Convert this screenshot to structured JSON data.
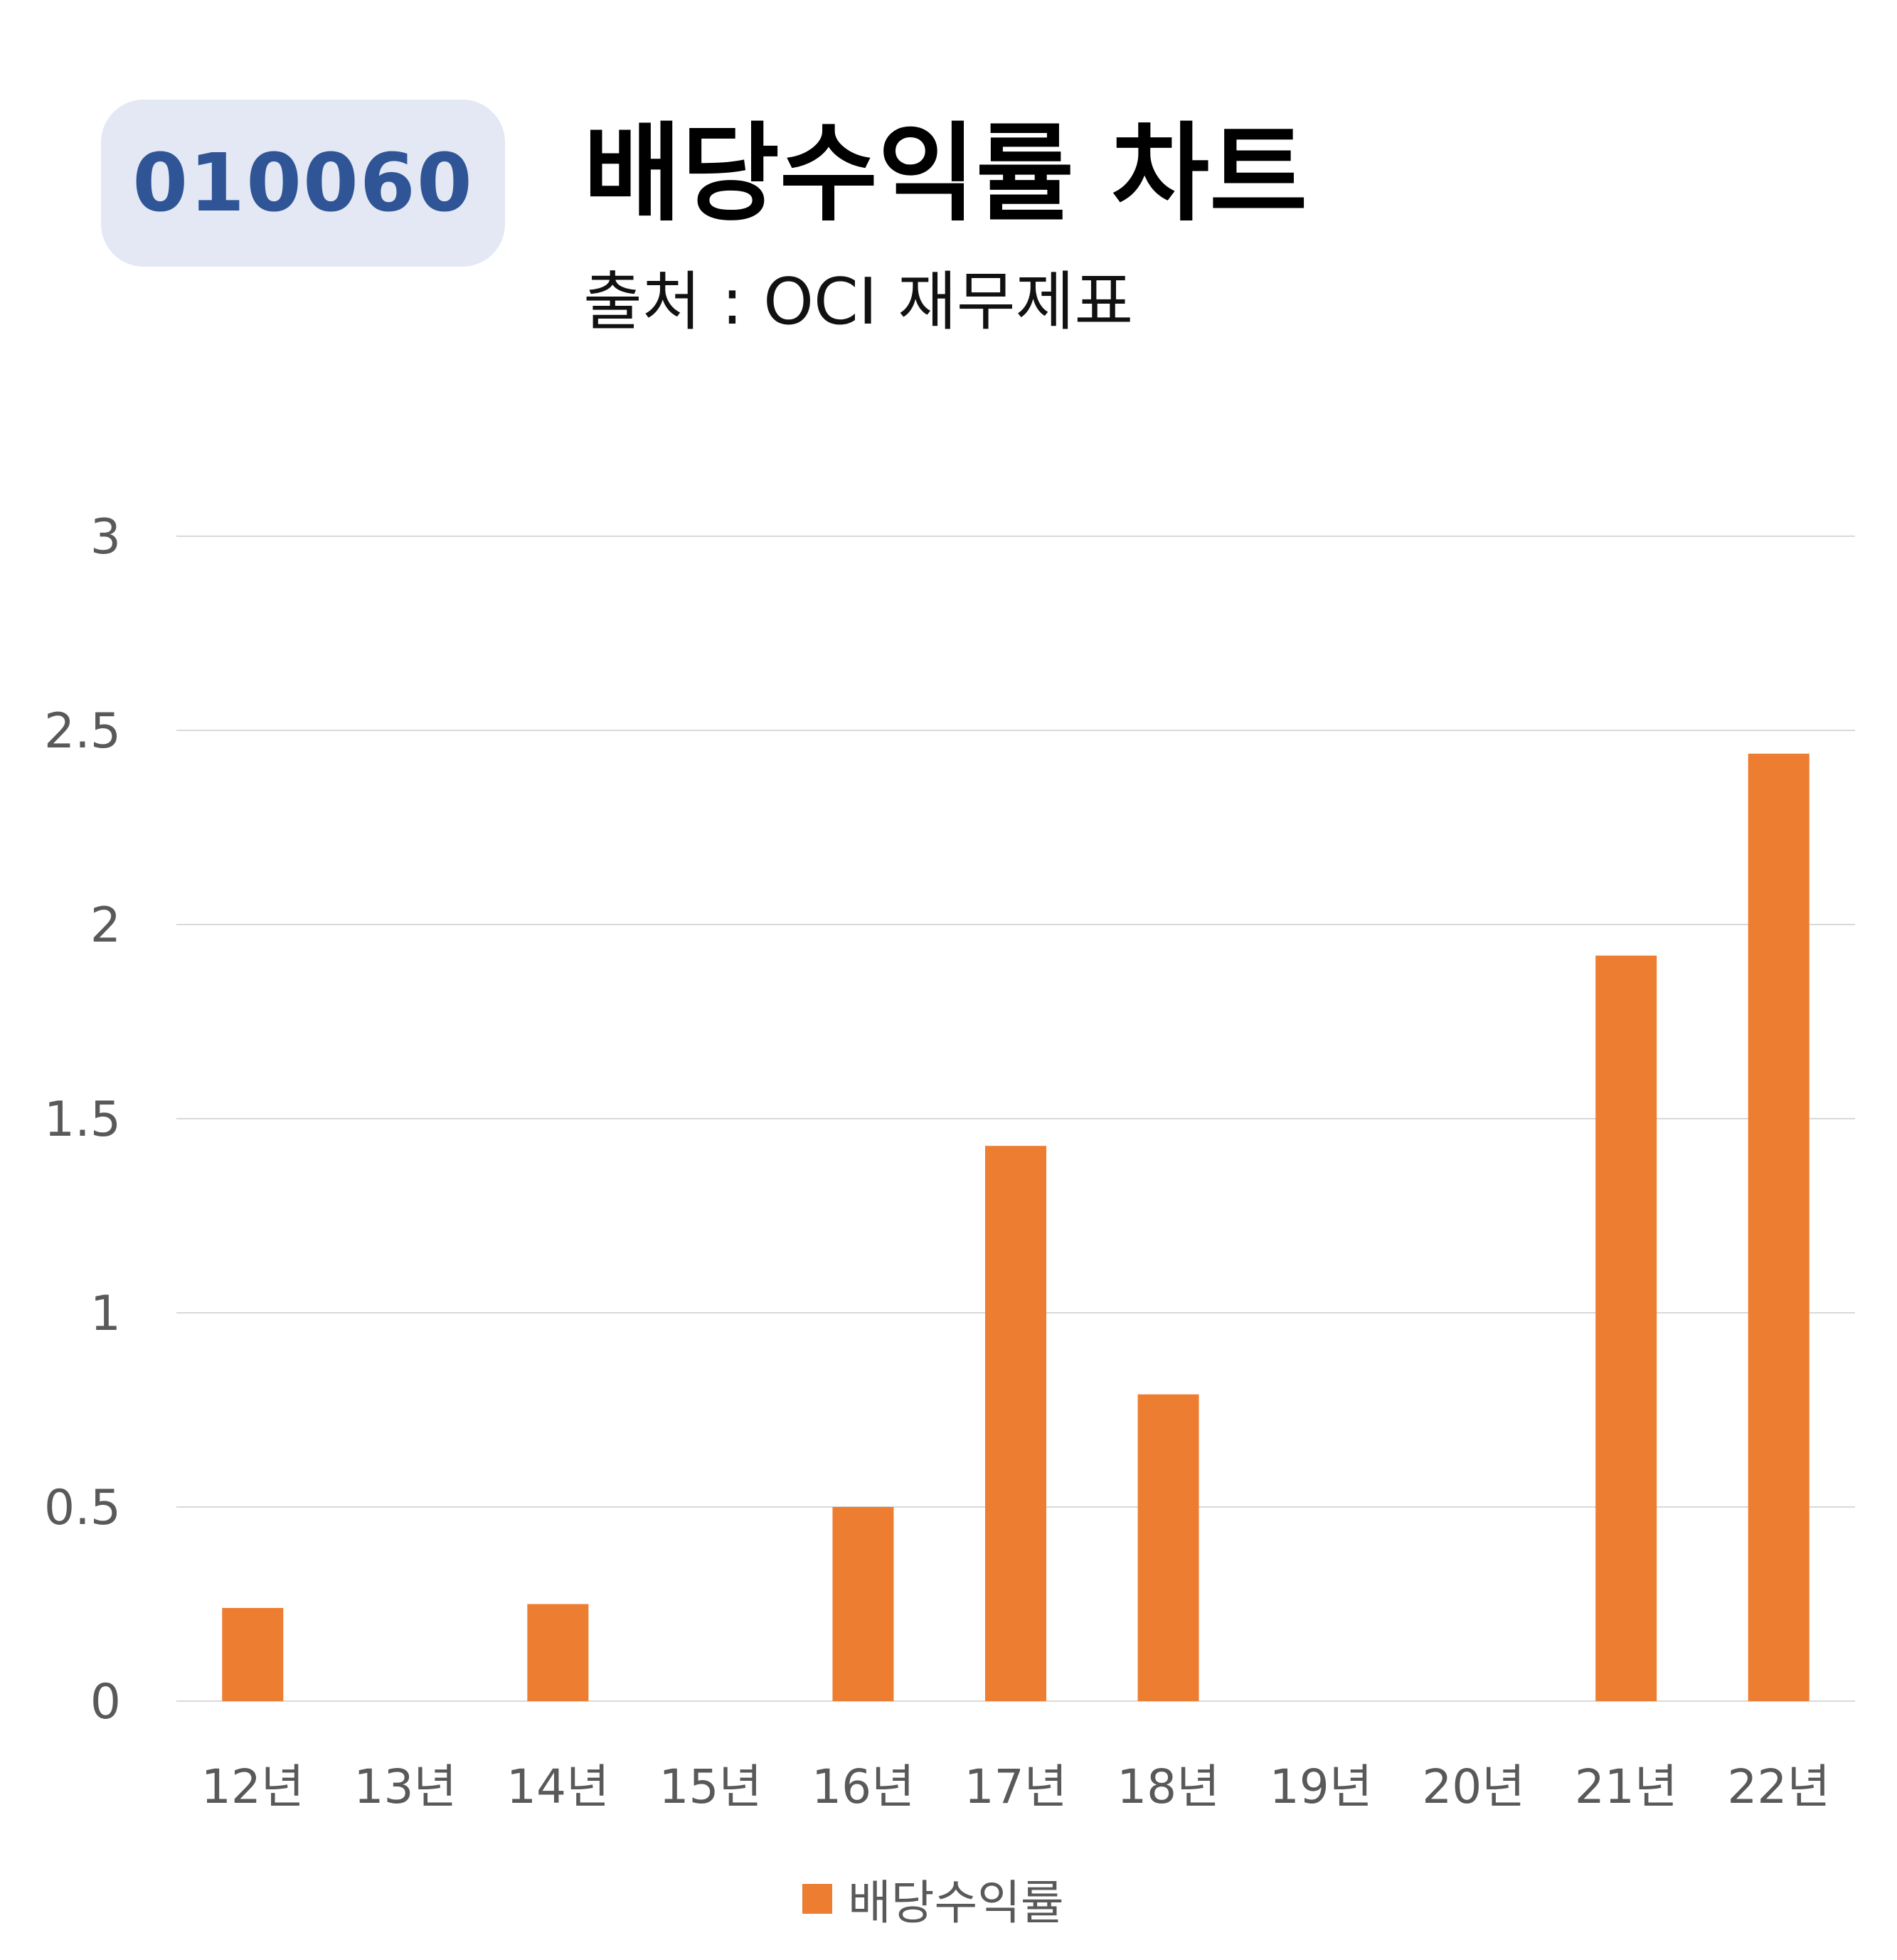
{
  "header": {
    "code": "010060",
    "title": "배당수익률 차트",
    "subtitle": "출처 : OCI 재무제표"
  },
  "colors": {
    "bar": "#ed7d31",
    "badge_bg": "#e3e8f4",
    "badge_text": "#2f5597",
    "grid": "#d9d9d9",
    "tick_text": "#595959"
  },
  "chart_data": {
    "type": "bar",
    "categories": [
      "12년",
      "13년",
      "14년",
      "15년",
      "16년",
      "17년",
      "18년",
      "19년",
      "20년",
      "21년",
      "22년"
    ],
    "series": [
      {
        "name": "배당수익률",
        "values": [
          0.24,
          0,
          0.25,
          0,
          0.5,
          1.43,
          0.79,
          0,
          0,
          1.92,
          2.44
        ]
      }
    ],
    "ylim": [
      0,
      3
    ],
    "yticks": [
      "0",
      "0.5",
      "1",
      "1.5",
      "2",
      "2.5",
      "3"
    ],
    "grid": true,
    "legend": "bottom"
  }
}
